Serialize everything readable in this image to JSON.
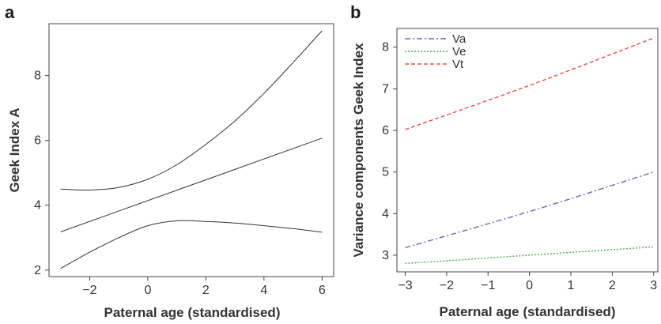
{
  "chart_data": [
    {
      "panel": "a",
      "type": "line",
      "xlabel": "Paternal age (standardised)",
      "ylabel": "Geek Index A",
      "xlim": [
        -3.4,
        6.4
      ],
      "ylim": [
        1.8,
        9.6
      ],
      "xticks": [
        -2,
        0,
        2,
        4,
        6
      ],
      "yticks": [
        2,
        4,
        6,
        8
      ],
      "grid": false,
      "line_color": "#333333",
      "series": [
        {
          "x": [
            -3,
            6
          ],
          "values": [
            3.18,
            6.07
          ]
        },
        {
          "x": [
            -3,
            -2,
            -1,
            0,
            1,
            2,
            3,
            4,
            5,
            6
          ],
          "values": [
            4.5,
            4.47,
            4.55,
            4.8,
            5.25,
            5.88,
            6.6,
            7.45,
            8.4,
            9.38
          ]
        },
        {
          "x": [
            -3,
            -2,
            -1,
            0,
            1,
            2,
            3,
            4,
            5,
            6
          ],
          "values": [
            2.05,
            2.55,
            3.0,
            3.37,
            3.52,
            3.5,
            3.45,
            3.37,
            3.28,
            3.17
          ]
        }
      ]
    },
    {
      "panel": "b",
      "type": "line",
      "xlabel": "Paternal age (standardised)",
      "ylabel": "Variance components Geek Index",
      "xlim": [
        -3.2,
        3.1
      ],
      "ylim": [
        2.6,
        8.45
      ],
      "xticks": [
        -3,
        -2,
        -1,
        0,
        1,
        2,
        3
      ],
      "yticks": [
        3,
        4,
        5,
        6,
        7,
        8
      ],
      "grid": false,
      "legend": "top-left",
      "series": [
        {
          "name": "Va",
          "color": "#6a6ab8",
          "style": "dashdot",
          "x": [
            -3,
            0,
            3
          ],
          "values": [
            3.18,
            4.05,
            5.0
          ]
        },
        {
          "name": "Ve",
          "color": "#4caf50",
          "style": "dotted",
          "x": [
            -3,
            0,
            3
          ],
          "values": [
            2.8,
            3.0,
            3.2
          ]
        },
        {
          "name": "Vt",
          "color": "#e8504a",
          "style": "dashed",
          "x": [
            -3,
            0,
            3
          ],
          "values": [
            6.02,
            7.08,
            8.22
          ]
        }
      ]
    }
  ]
}
